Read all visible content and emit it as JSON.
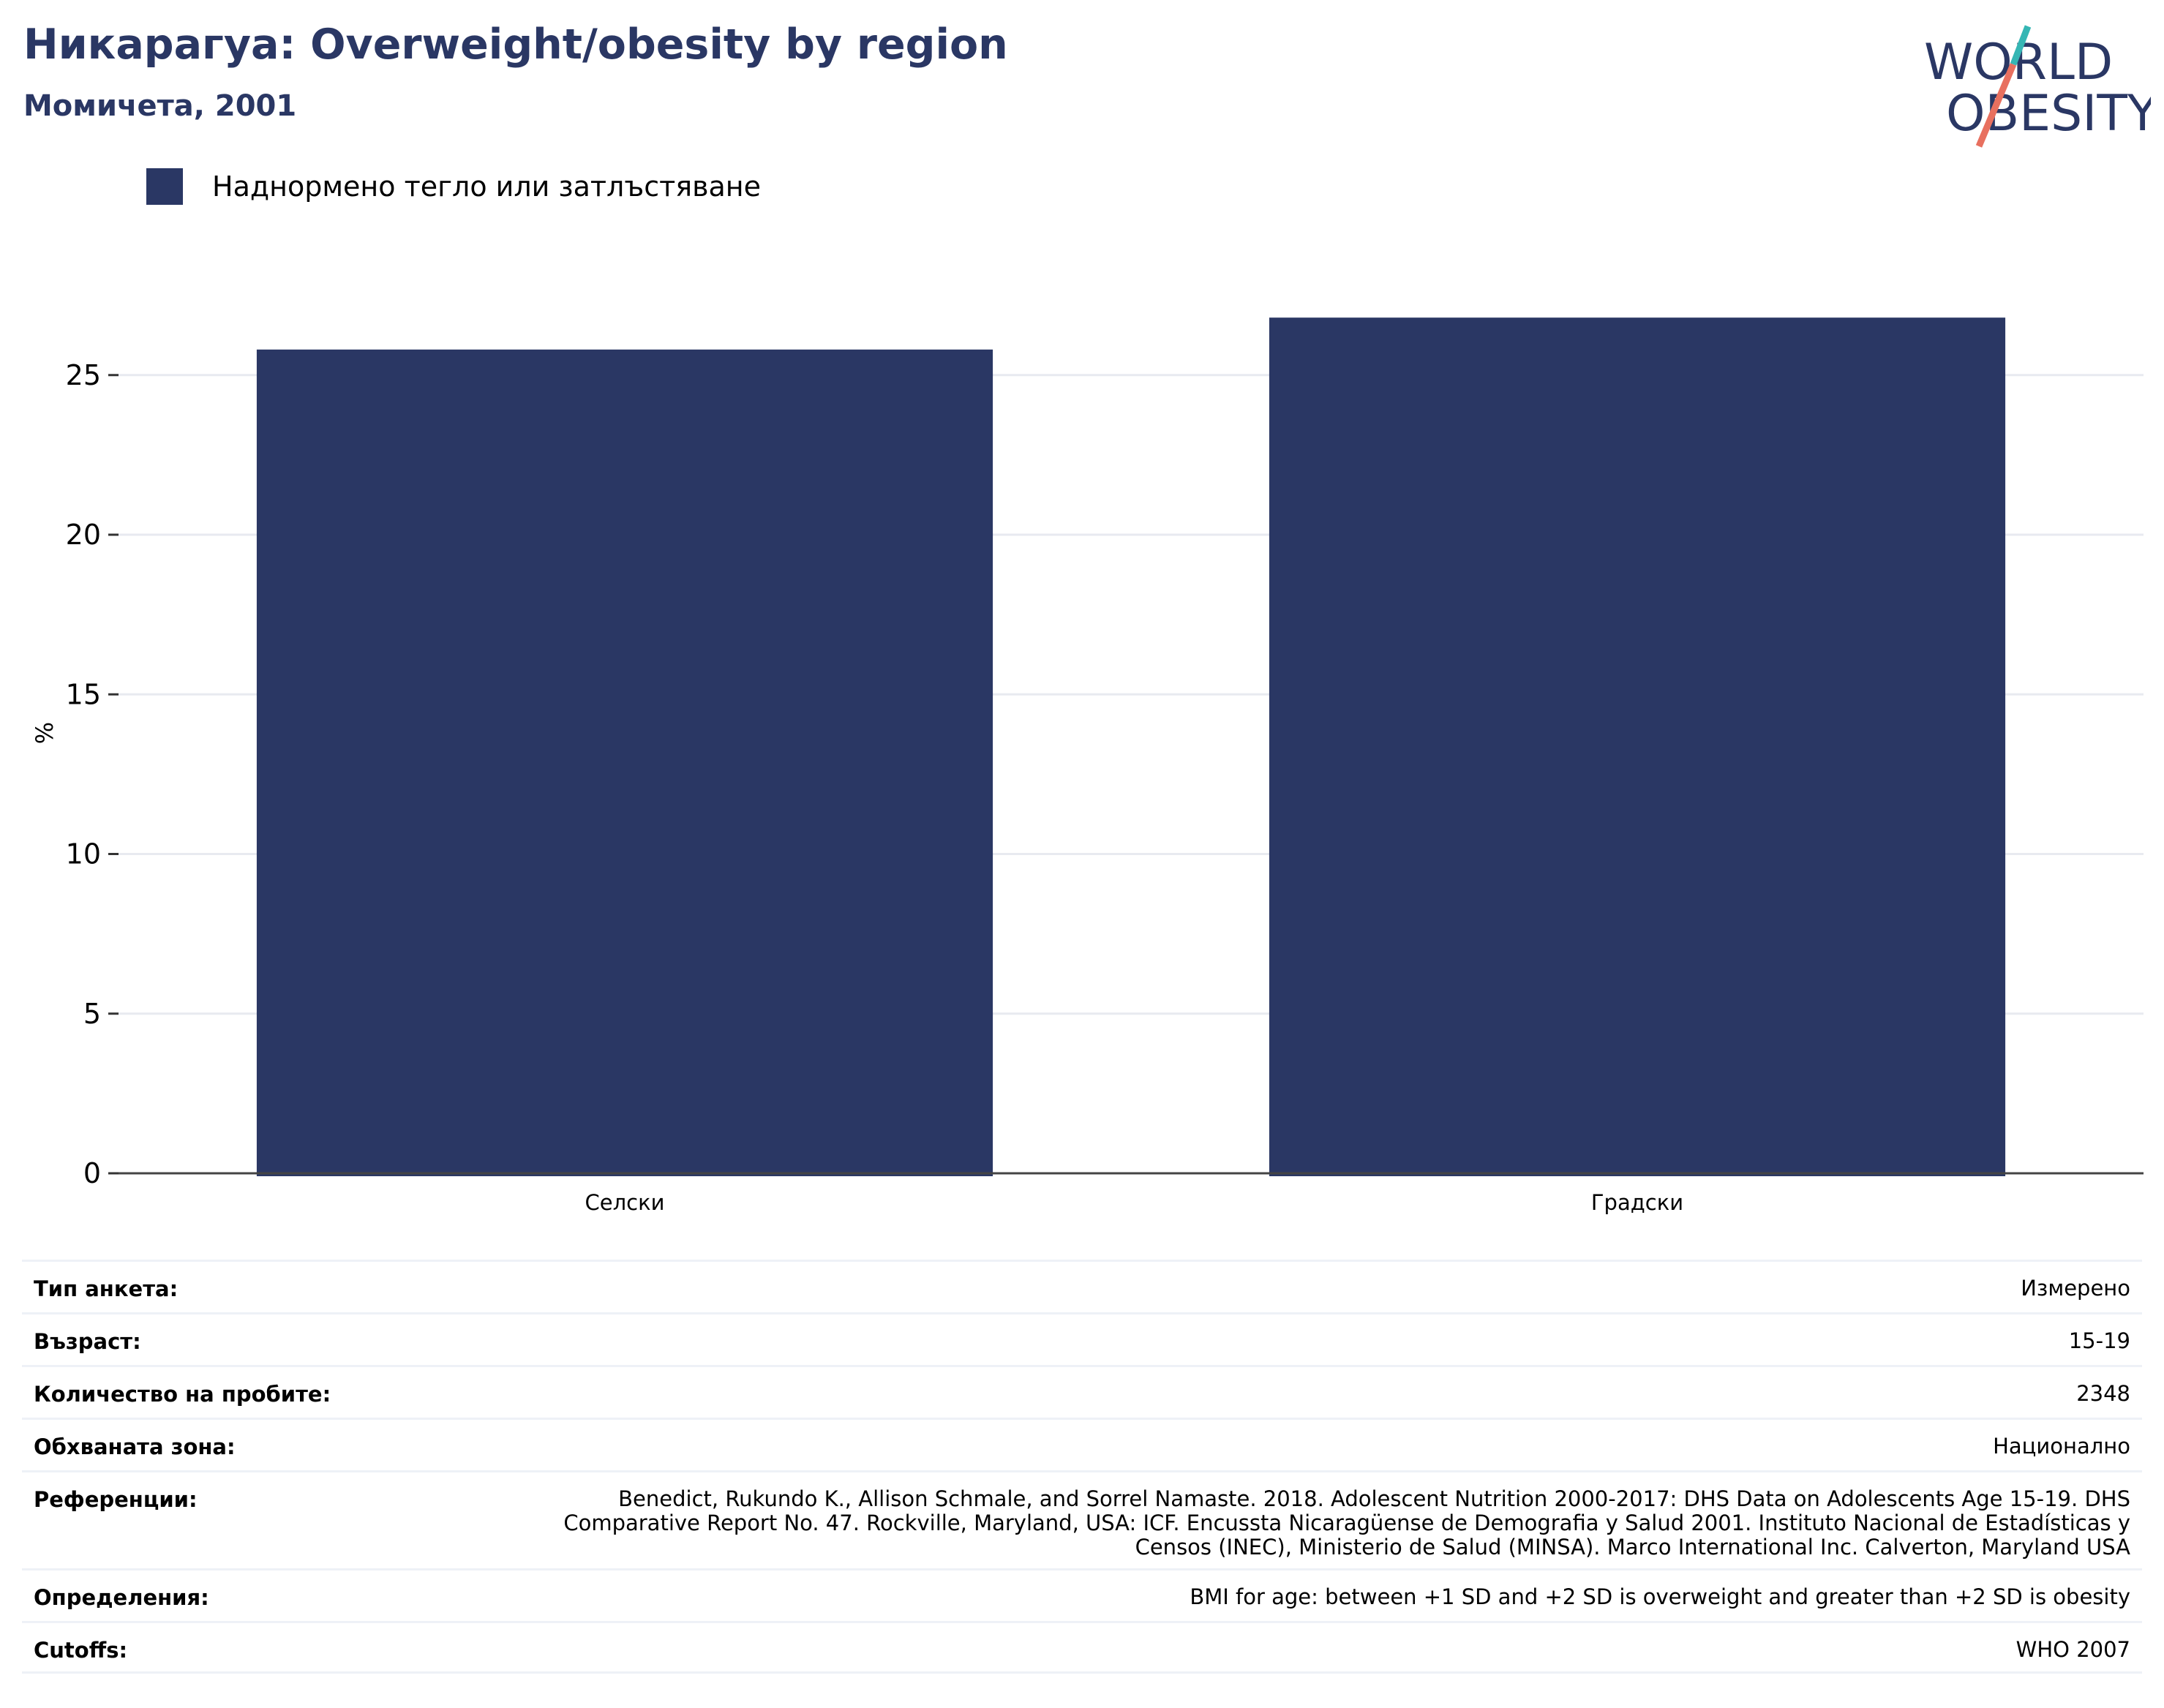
{
  "header": {
    "title": "Никарагуа: Overweight/obesity by region",
    "subtitle": "Момичета, 2001"
  },
  "logo": {
    "line1": "WORLD",
    "line2": "OBESITY",
    "colors": {
      "text": "#2a3764",
      "slash_top": "#35b6b4",
      "slash_bottom": "#e8705f"
    }
  },
  "chart_data": {
    "type": "bar",
    "categories": [
      "Селски",
      "Градски"
    ],
    "series": [
      {
        "name": "Наднормено тегло или затлъстяване",
        "values": [
          25.8,
          26.8
        ],
        "color": "#2a3764"
      }
    ],
    "title": "",
    "xlabel": "",
    "ylabel": "%",
    "ylim": [
      0,
      28.5
    ],
    "yticks": [
      0,
      5,
      10,
      15,
      20,
      25
    ],
    "grid": true,
    "legend_position": "top-left"
  },
  "meta": {
    "rows": [
      {
        "label": "Тип анкета:",
        "value": "Измерено"
      },
      {
        "label": "Възраст:",
        "value": "15-19"
      },
      {
        "label": "Количество на пробите:",
        "value": "2348"
      },
      {
        "label": "Обхваната зона:",
        "value": "Национално"
      },
      {
        "label": "Референции:",
        "value": "Benedict, Rukundo K., Allison Schmale, and Sorrel Namaste. 2018. Adolescent Nutrition 2000-2017: DHS Data on Adolescents Age 15-19. DHS Comparative Report No. 47. Rockville, Maryland, USA: ICF. Encussta Nicaragüense de Demografia y Salud 2001. Instituto Nacional de Estadísticas y Censos (INEC), Ministerio de Salud (MINSA). Marco International Inc. Calverton, Maryland USA"
      },
      {
        "label": "Определения:",
        "value": "BMI for age: between +1 SD and +2 SD is overweight and greater than +2 SD is obesity"
      },
      {
        "label": "Cutoffs:",
        "value": "WHO 2007"
      }
    ]
  }
}
